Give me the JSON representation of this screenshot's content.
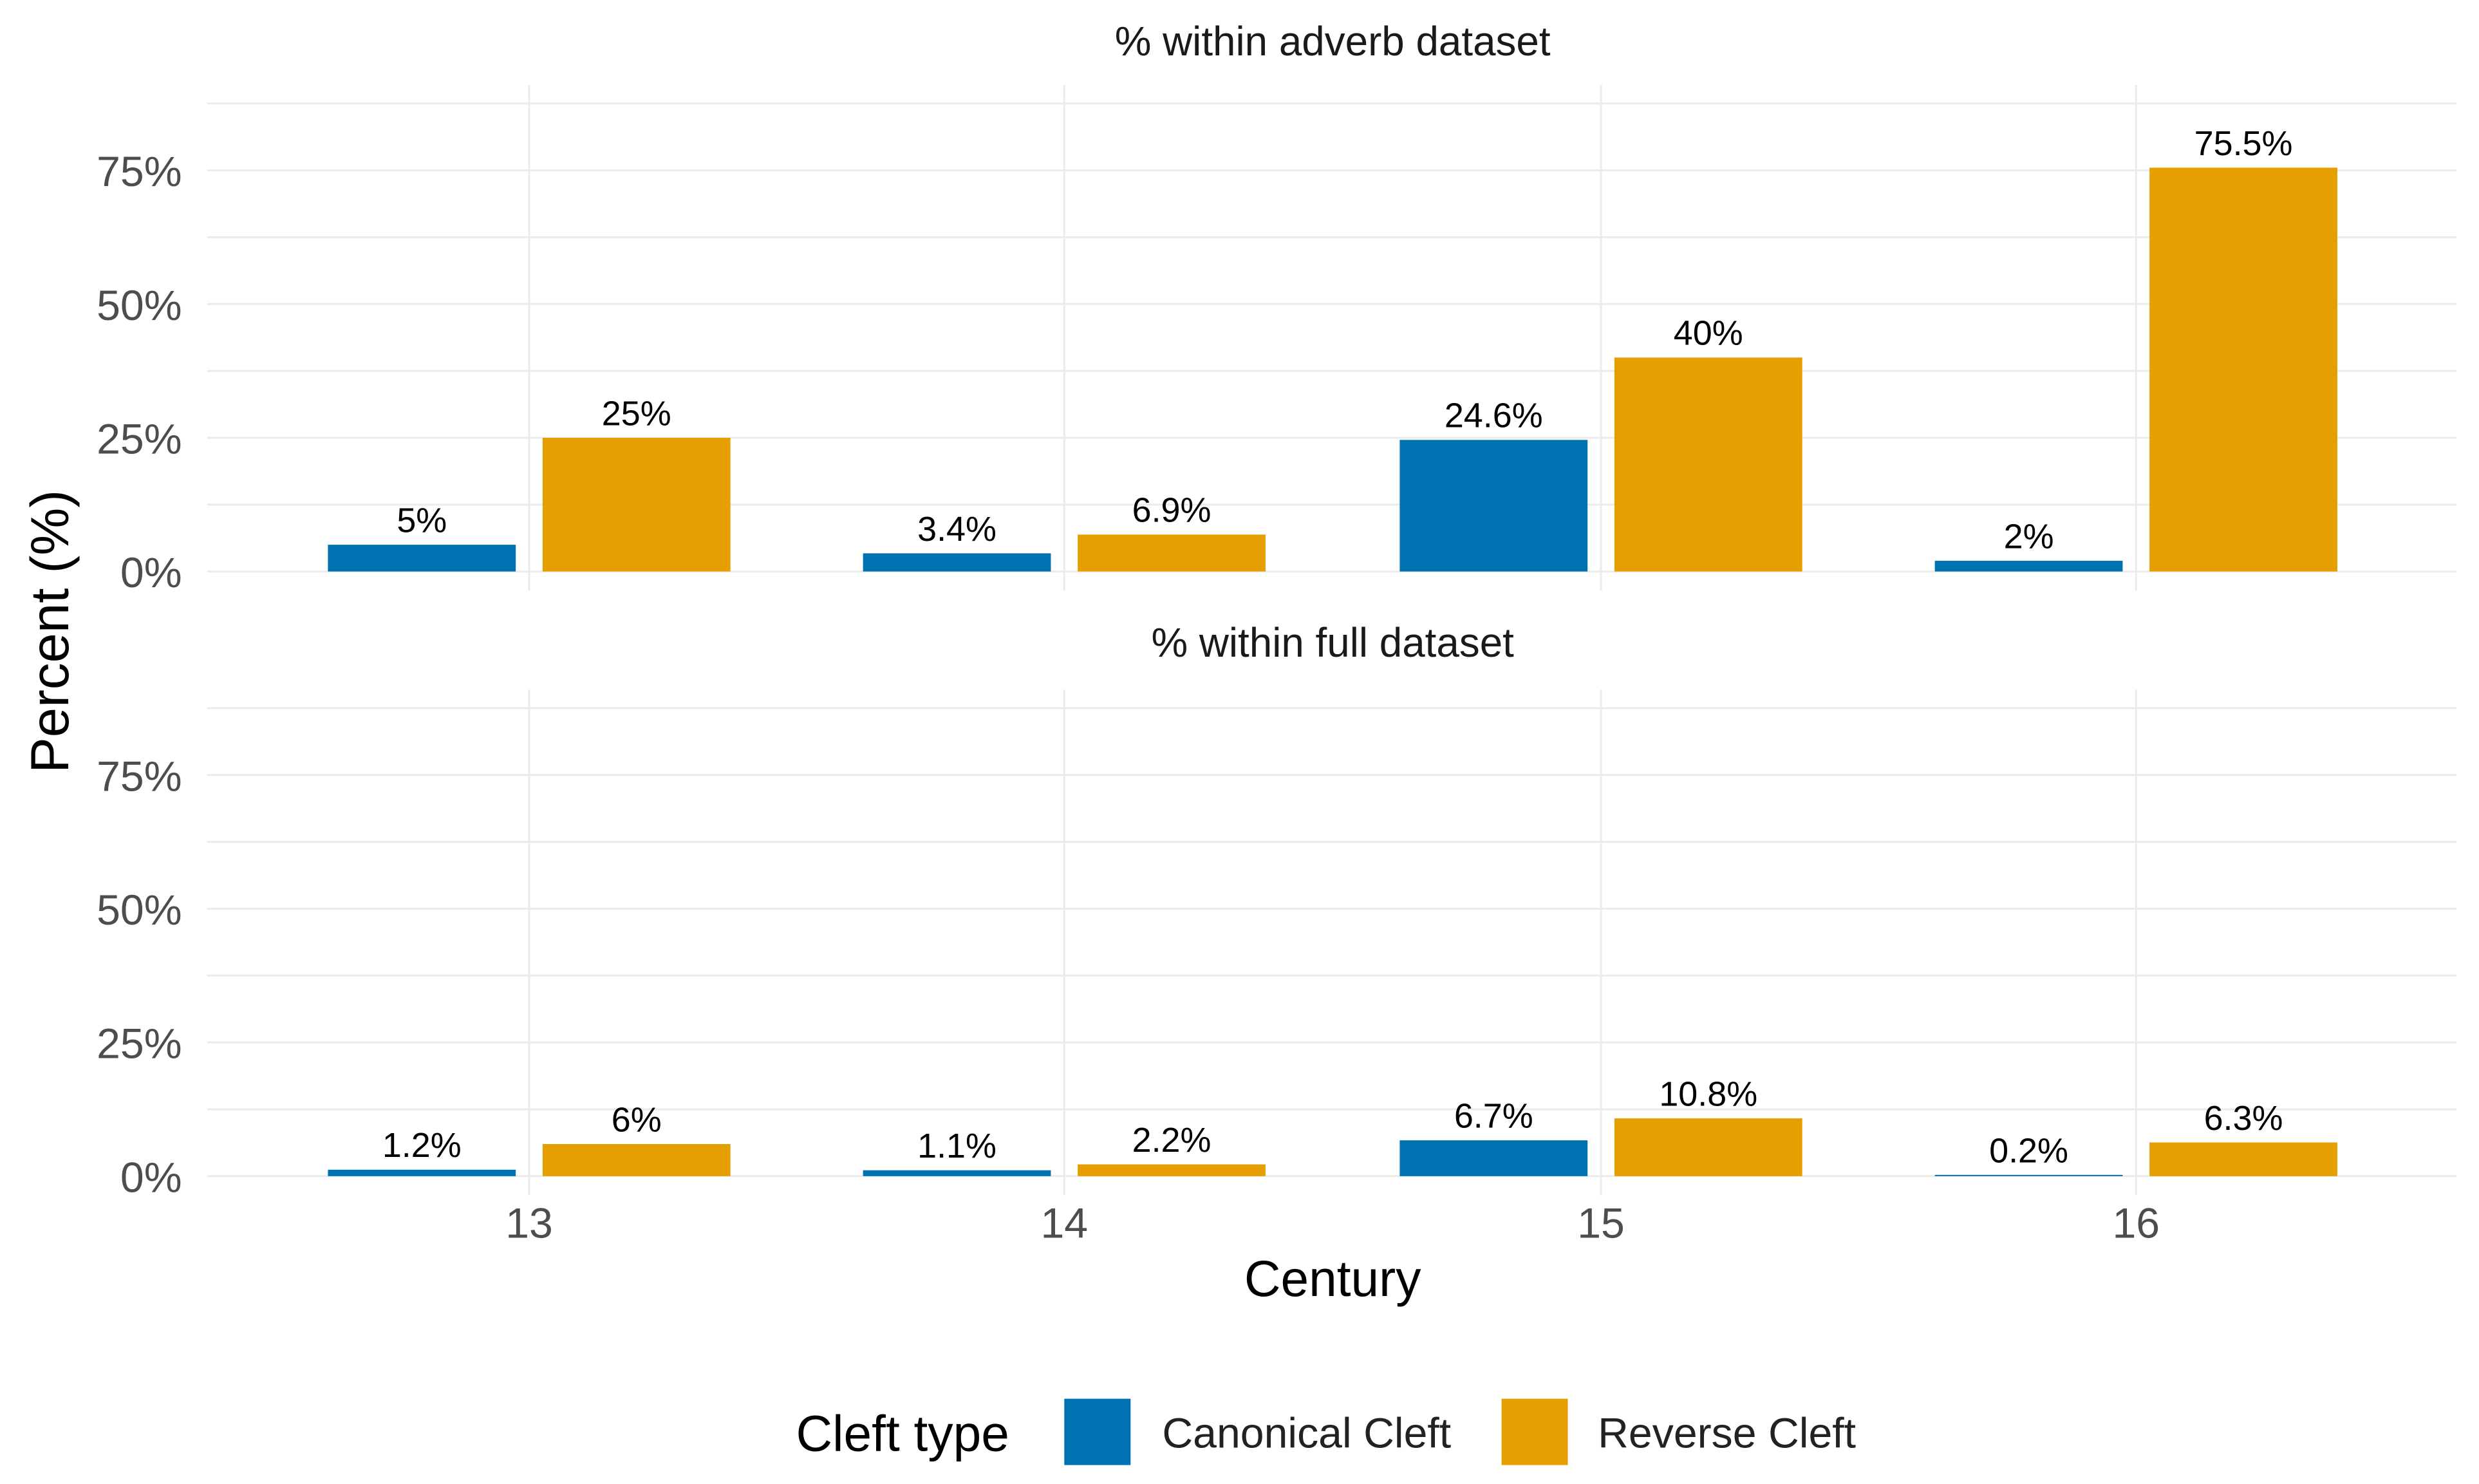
{
  "chart_data": {
    "type": "bar",
    "ylabel": "Percent (%)",
    "xlabel": "Century",
    "categories": [
      "13",
      "14",
      "15",
      "16"
    ],
    "yticks": [
      "0%",
      "25%",
      "50%",
      "75%"
    ],
    "ytick_values": [
      0,
      25,
      50,
      75
    ],
    "ylim": [
      0,
      88
    ],
    "grid": true,
    "legend": {
      "title": "Cleft type",
      "placement": "bottom",
      "entries": [
        "Canonical Cleft",
        "Reverse Cleft"
      ]
    },
    "colors": {
      "Canonical Cleft": "#0072B2",
      "Reverse Cleft": "#E69F00"
    },
    "panels": [
      {
        "title": "% within adverb dataset",
        "series": [
          {
            "name": "Canonical Cleft",
            "values": [
              5,
              3.4,
              24.6,
              2
            ],
            "labels": [
              "5%",
              "3.4%",
              "24.6%",
              "2%"
            ]
          },
          {
            "name": "Reverse Cleft",
            "values": [
              25,
              6.9,
              40,
              75.5
            ],
            "labels": [
              "25%",
              "6.9%",
              "40%",
              "75.5%"
            ]
          }
        ]
      },
      {
        "title": "% within full dataset",
        "series": [
          {
            "name": "Canonical Cleft",
            "values": [
              1.2,
              1.1,
              6.7,
              0.2
            ],
            "labels": [
              "1.2%",
              "1.1%",
              "6.7%",
              "0.2%"
            ]
          },
          {
            "name": "Reverse Cleft",
            "values": [
              6,
              2.2,
              10.8,
              6.3
            ],
            "labels": [
              "6%",
              "2.2%",
              "10.8%",
              "6.3%"
            ]
          }
        ]
      }
    ]
  }
}
